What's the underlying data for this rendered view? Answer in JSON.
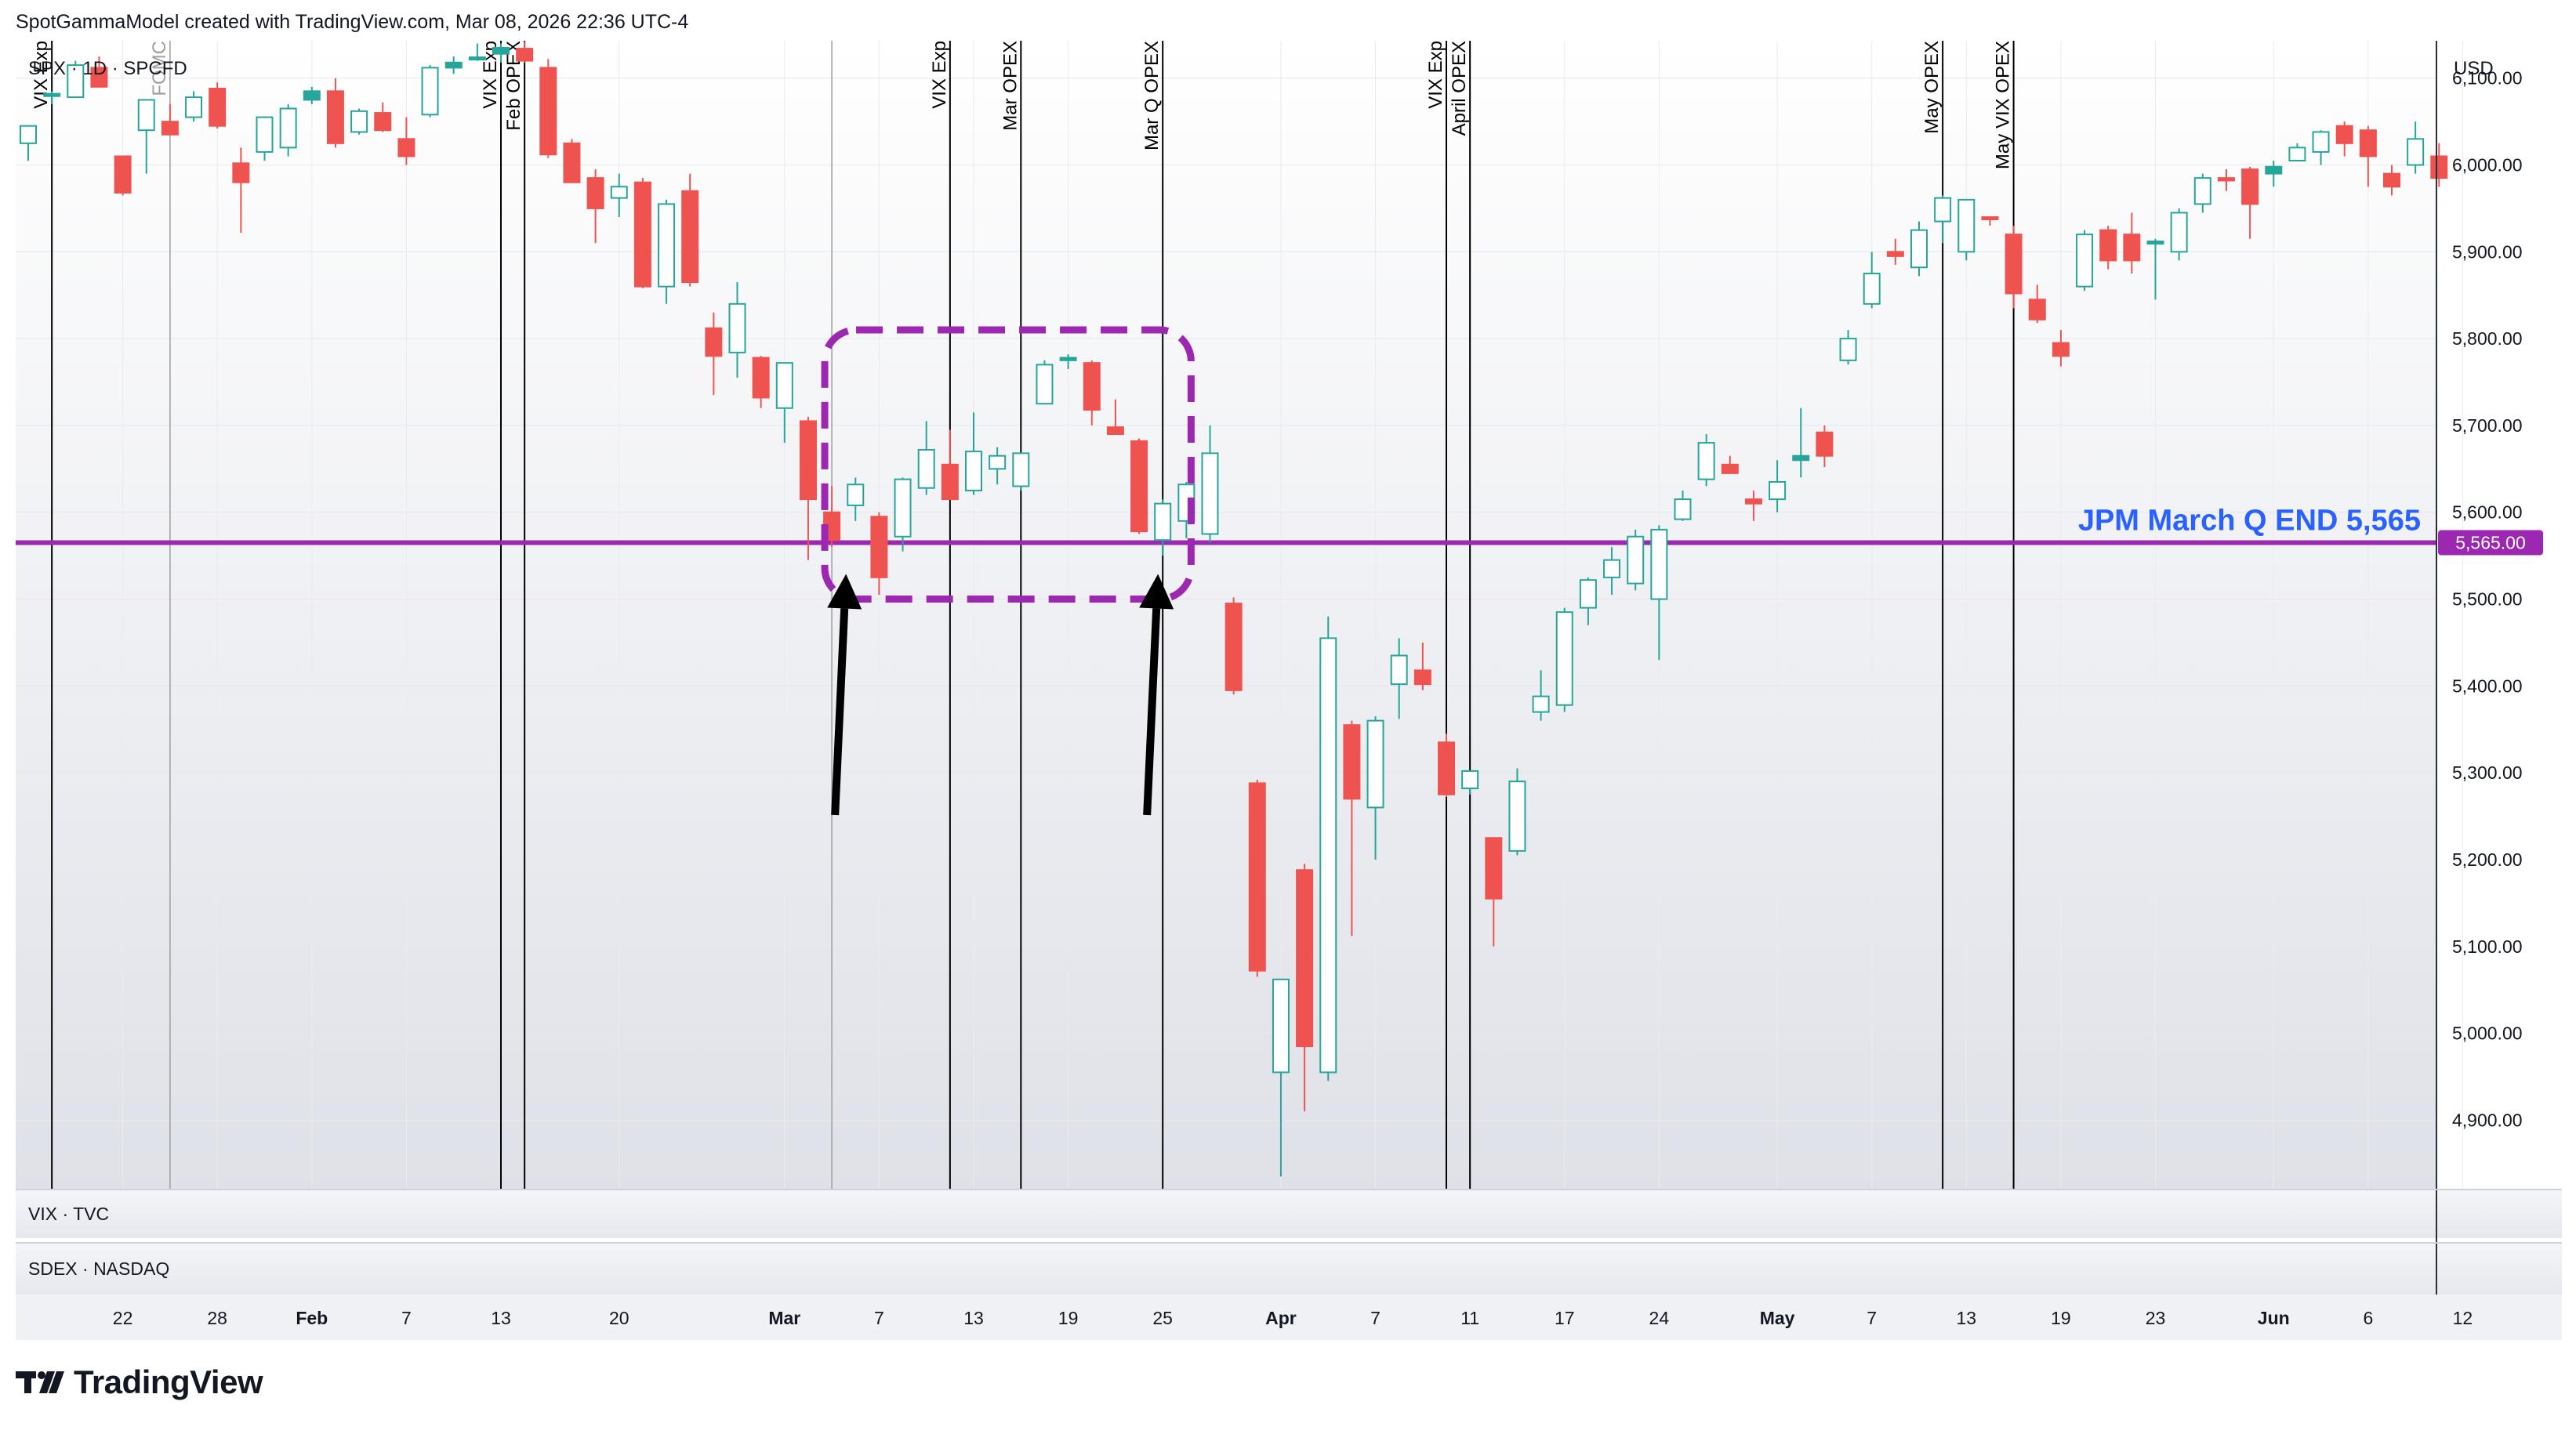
{
  "header": {
    "caption": "SpotGammaModel created with TradingView.com, Mar 08, 2026 22:36 UTC-4"
  },
  "symbol_label": "SPX · 1D · SPCFD",
  "currency_label": "USD",
  "sub_panes": [
    {
      "label": "VIX · TVC"
    },
    {
      "label": "SDEX · NASDAQ"
    }
  ],
  "brand": {
    "name": "TradingView"
  },
  "colors": {
    "up": "#26a69a",
    "down": "#ef5350",
    "level_line": "#9c27b0",
    "level_text": "#2962ff",
    "box": "#9c27b0",
    "arrow": "#000000"
  },
  "chart_data": {
    "type": "candlestick",
    "title": "",
    "ylim": [
      4820,
      6190
    ],
    "y_ticks": [
      4900,
      5000,
      5100,
      5200,
      5300,
      5400,
      5500,
      5600,
      5700,
      5800,
      5900,
      6000,
      6100
    ],
    "y_tick_labels": [
      "4,900.00",
      "5,000.00",
      "5,100.00",
      "5,200.00",
      "5,300.00",
      "5,400.00",
      "5,500.00",
      "5,600.00",
      "5,700.00",
      "5,800.00",
      "5,900.00",
      "6,000.00",
      "6,100.00"
    ],
    "x_ticks": [
      {
        "label": "22",
        "bar": 4,
        "bold": false
      },
      {
        "label": "28",
        "bar": 8,
        "bold": false
      },
      {
        "label": "Feb",
        "bar": 12,
        "bold": true
      },
      {
        "label": "7",
        "bar": 16,
        "bold": false
      },
      {
        "label": "13",
        "bar": 20,
        "bold": false
      },
      {
        "label": "20",
        "bar": 25,
        "bold": false
      },
      {
        "label": "Mar",
        "bar": 32,
        "bold": true
      },
      {
        "label": "7",
        "bar": 36,
        "bold": false
      },
      {
        "label": "13",
        "bar": 40,
        "bold": false
      },
      {
        "label": "19",
        "bar": 44,
        "bold": false
      },
      {
        "label": "25",
        "bar": 48,
        "bold": false
      },
      {
        "label": "Apr",
        "bar": 53,
        "bold": true
      },
      {
        "label": "7",
        "bar": 57,
        "bold": false
      },
      {
        "label": "11",
        "bar": 61,
        "bold": false
      },
      {
        "label": "17",
        "bar": 65,
        "bold": false
      },
      {
        "label": "24",
        "bar": 69,
        "bold": false
      },
      {
        "label": "May",
        "bar": 74,
        "bold": true
      },
      {
        "label": "7",
        "bar": 78,
        "bold": false
      },
      {
        "label": "13",
        "bar": 82,
        "bold": false
      },
      {
        "label": "19",
        "bar": 86,
        "bold": false
      },
      {
        "label": "23",
        "bar": 90,
        "bold": false
      },
      {
        "label": "Jun",
        "bar": 95,
        "bold": true
      },
      {
        "label": "6",
        "bar": 99,
        "bold": false
      },
      {
        "label": "12",
        "bar": 103,
        "bold": false
      }
    ],
    "candles": [
      [
        6025,
        6045,
        6005,
        6045
      ],
      [
        6080,
        6085,
        6070,
        6082
      ],
      [
        6078,
        6120,
        6078,
        6115
      ],
      [
        6112,
        6125,
        6090,
        6090
      ],
      [
        6010,
        6010,
        5965,
        5968
      ],
      [
        6040,
        6075,
        5990,
        6075
      ],
      [
        6050,
        6070,
        6035,
        6035
      ],
      [
        6055,
        6085,
        6050,
        6078
      ],
      [
        6088,
        6095,
        6042,
        6045
      ],
      [
        6002,
        6020,
        5922,
        5980
      ],
      [
        6015,
        6055,
        6005,
        6055
      ],
      [
        6020,
        6070,
        6010,
        6065
      ],
      [
        6075,
        6090,
        6070,
        6085
      ],
      [
        6085,
        6100,
        6020,
        6025
      ],
      [
        6038,
        6065,
        6035,
        6062
      ],
      [
        6060,
        6072,
        6038,
        6040
      ],
      [
        6030,
        6055,
        6000,
        6010
      ],
      [
        6058,
        6115,
        6055,
        6112
      ],
      [
        6112,
        6125,
        6105,
        6118
      ],
      [
        6122,
        6140,
        6120,
        6124
      ],
      [
        6128,
        6140,
        6118,
        6135
      ],
      [
        6134,
        6142,
        6118,
        6120
      ],
      [
        6112,
        6122,
        6008,
        6012
      ],
      [
        6025,
        6030,
        5980,
        5980
      ],
      [
        5985,
        5995,
        5910,
        5950
      ],
      [
        5962,
        5990,
        5940,
        5975
      ],
      [
        5980,
        5985,
        5858,
        5860
      ],
      [
        5860,
        5960,
        5840,
        5955
      ],
      [
        5970,
        5990,
        5860,
        5865
      ],
      [
        5812,
        5830,
        5735,
        5780
      ],
      [
        5784,
        5865,
        5755,
        5840
      ],
      [
        5778,
        5780,
        5720,
        5732
      ],
      [
        5720,
        5770,
        5680,
        5772
      ],
      [
        5705,
        5710,
        5545,
        5615
      ],
      [
        5600,
        5630,
        5560,
        5568
      ],
      [
        5608,
        5640,
        5590,
        5632
      ],
      [
        5595,
        5600,
        5505,
        5525
      ],
      [
        5572,
        5640,
        5555,
        5638
      ],
      [
        5628,
        5705,
        5620,
        5672
      ],
      [
        5655,
        5695,
        5620,
        5615
      ],
      [
        5625,
        5715,
        5620,
        5670
      ],
      [
        5650,
        5675,
        5632,
        5665
      ],
      [
        5630,
        5665,
        5625,
        5668
      ],
      [
        5725,
        5775,
        5725,
        5770
      ],
      [
        5775,
        5782,
        5765,
        5778
      ],
      [
        5772,
        5775,
        5700,
        5718
      ],
      [
        5698,
        5730,
        5690,
        5690
      ],
      [
        5682,
        5685,
        5575,
        5578
      ],
      [
        5568,
        5615,
        5550,
        5610
      ],
      [
        5590,
        5635,
        5570,
        5632
      ],
      [
        5575,
        5700,
        5565,
        5668
      ],
      [
        5495,
        5502,
        5390,
        5395
      ],
      [
        5288,
        5292,
        5065,
        5072
      ],
      [
        4955,
        5060,
        4835,
        5062
      ],
      [
        5188,
        5195,
        4910,
        4985
      ],
      [
        4955,
        5480,
        4945,
        5455
      ],
      [
        5355,
        5360,
        5112,
        5270
      ],
      [
        5260,
        5365,
        5200,
        5360
      ],
      [
        5402,
        5455,
        5362,
        5435
      ],
      [
        5418,
        5450,
        5395,
        5402
      ],
      [
        5335,
        5345,
        5272,
        5275
      ],
      [
        5282,
        5300,
        5275,
        5302
      ],
      [
        5225,
        5225,
        5100,
        5155
      ],
      [
        5210,
        5305,
        5205,
        5290
      ],
      [
        5370,
        5418,
        5360,
        5388
      ],
      [
        5378,
        5490,
        5370,
        5485
      ],
      [
        5490,
        5525,
        5470,
        5522
      ],
      [
        5525,
        5560,
        5505,
        5545
      ],
      [
        5518,
        5580,
        5510,
        5572
      ],
      [
        5500,
        5585,
        5430,
        5580
      ],
      [
        5592,
        5625,
        5590,
        5615
      ],
      [
        5638,
        5690,
        5630,
        5680
      ],
      [
        5655,
        5665,
        5650,
        5645
      ],
      [
        5615,
        5625,
        5590,
        5610
      ],
      [
        5615,
        5660,
        5600,
        5635
      ],
      [
        5660,
        5720,
        5640,
        5665
      ],
      [
        5692,
        5700,
        5652,
        5665
      ],
      [
        5775,
        5810,
        5770,
        5800
      ],
      [
        5840,
        5900,
        5835,
        5875
      ],
      [
        5900,
        5915,
        5885,
        5895
      ],
      [
        5882,
        5935,
        5872,
        5925
      ],
      [
        5935,
        5965,
        5910,
        5962
      ],
      [
        5900,
        5960,
        5890,
        5960
      ],
      [
        5940,
        5940,
        5930,
        5938
      ],
      [
        5920,
        5930,
        5835,
        5852
      ],
      [
        5845,
        5862,
        5818,
        5822
      ],
      [
        5795,
        5810,
        5768,
        5780
      ],
      [
        5860,
        5925,
        5855,
        5920
      ],
      [
        5925,
        5930,
        5880,
        5890
      ],
      [
        5920,
        5945,
        5875,
        5890
      ],
      [
        5910,
        5915,
        5845,
        5912
      ],
      [
        5900,
        5950,
        5890,
        5945
      ],
      [
        5955,
        5990,
        5945,
        5985
      ],
      [
        5985,
        5995,
        5970,
        5982
      ],
      [
        5995,
        5998,
        5915,
        5955
      ],
      [
        5990,
        6005,
        5975,
        5998
      ],
      [
        6005,
        6025,
        6005,
        6020
      ],
      [
        6015,
        6040,
        6000,
        6038
      ],
      [
        6045,
        6050,
        6010,
        6025
      ],
      [
        6040,
        6045,
        5975,
        6010
      ],
      [
        5990,
        6000,
        5965,
        5975
      ],
      [
        6000,
        6050,
        5990,
        6030
      ],
      [
        6010,
        6025,
        5975,
        5985
      ]
    ],
    "events": [
      {
        "label": "VIX Exp",
        "bar": 1,
        "color": "#000000"
      },
      {
        "label": "FOMC",
        "bar": 6,
        "color": "#9e9e9e"
      },
      {
        "label": "VIX Exp",
        "bar": 20,
        "color": "#000000"
      },
      {
        "label": "Feb OPEX",
        "bar": 21,
        "color": "#000000"
      },
      {
        "label": "",
        "bar": 34,
        "color": "#9e9e9e"
      },
      {
        "label": "VIX Exp",
        "bar": 39,
        "color": "#000000"
      },
      {
        "label": "Mar OPEX",
        "bar": 42,
        "color": "#000000"
      },
      {
        "label": "Mar Q OPEX",
        "bar": 48,
        "color": "#000000"
      },
      {
        "label": "VIX Exp",
        "bar": 60,
        "color": "#000000"
      },
      {
        "label": "April OPEX",
        "bar": 61,
        "color": "#000000"
      },
      {
        "label": "May OPEX",
        "bar": 81,
        "color": "#000000"
      },
      {
        "label": "May VIX OPEX",
        "bar": 84,
        "color": "#000000"
      }
    ],
    "level": {
      "value": 5565,
      "label": "JPM March Q END 5,565",
      "price_label": "5,565.00"
    },
    "highlight_box": {
      "bar_start": 33.7,
      "bar_end": 49.2,
      "y_top": 5810,
      "y_bottom": 5500
    },
    "arrows": [
      {
        "bar": 34.6
      },
      {
        "bar": 47.8
      }
    ]
  }
}
